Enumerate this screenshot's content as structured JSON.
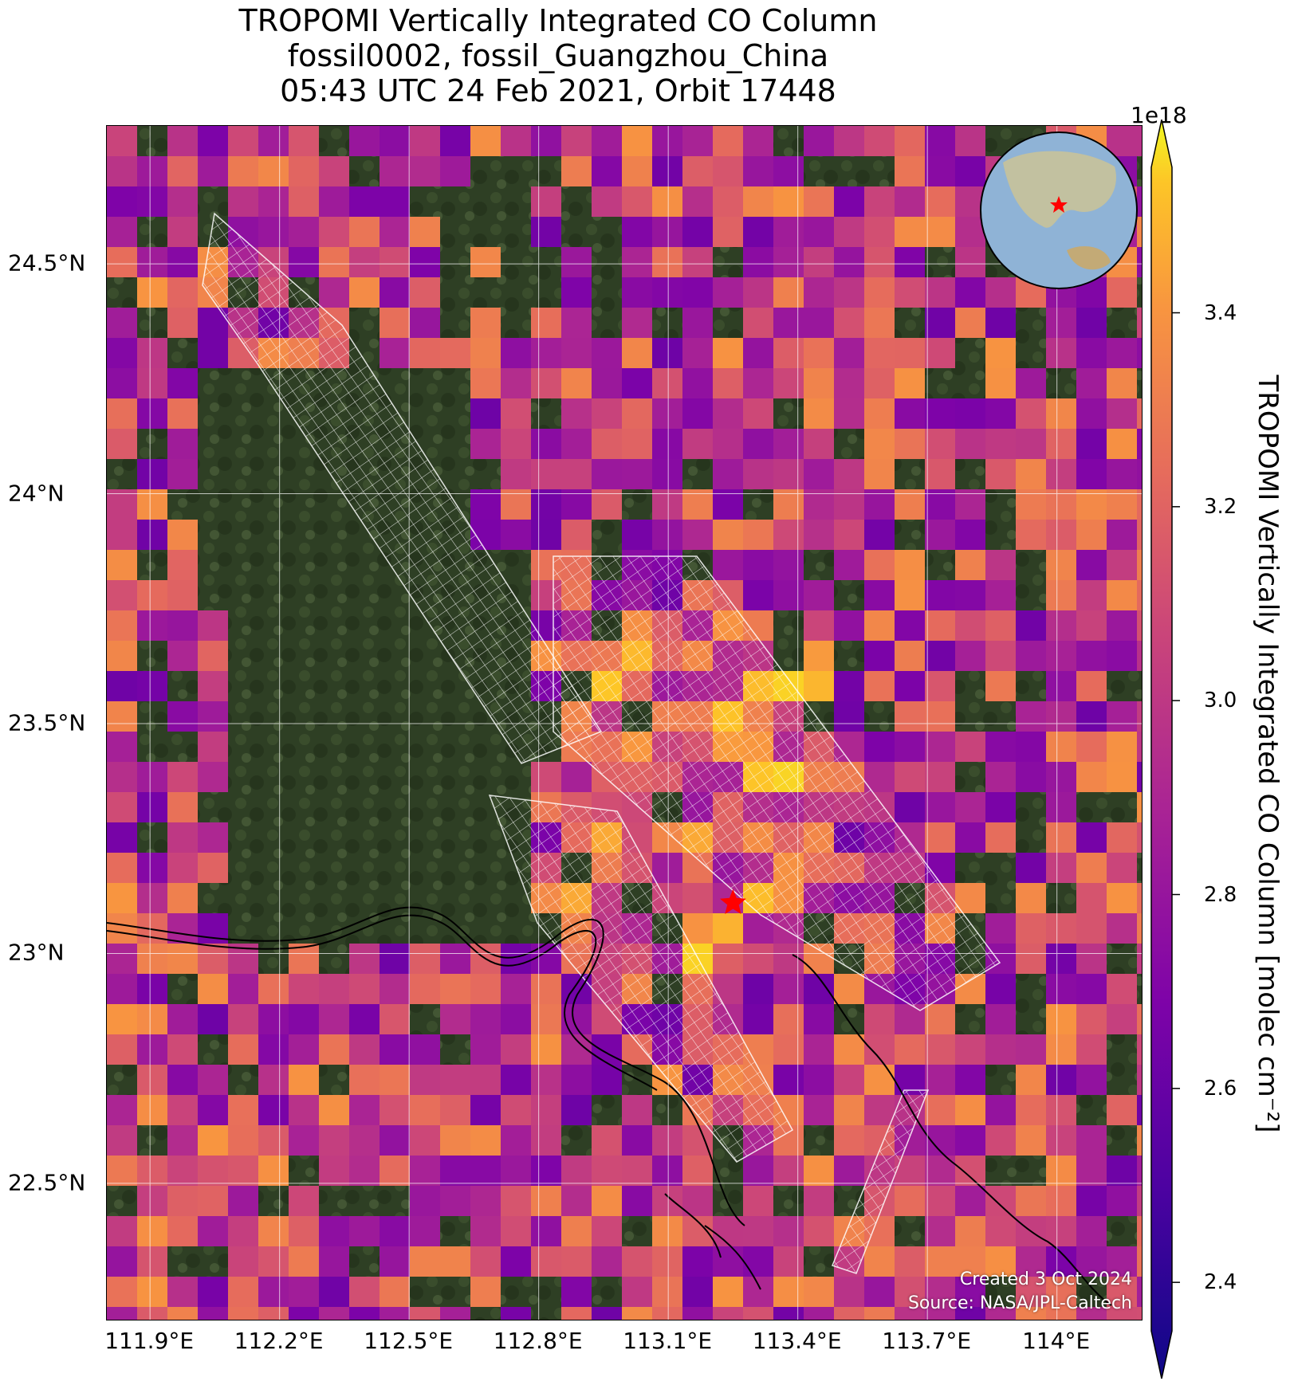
{
  "title": {
    "line1": "TROPOMI Vertically Integrated CO Column",
    "line2": "fossil0002, fossil_Guangzhou_China",
    "line3": "05:43 UTC 24 Feb 2021, Orbit 17448"
  },
  "map": {
    "lon_range": [
      111.8,
      114.2
    ],
    "lat_range": [
      22.2,
      24.8
    ],
    "lat_ticks": [
      {
        "value": 24.5,
        "label": "24.5°N"
      },
      {
        "value": 24.0,
        "label": "24°N"
      },
      {
        "value": 23.5,
        "label": "23.5°N"
      },
      {
        "value": 23.0,
        "label": "23°N"
      },
      {
        "value": 22.5,
        "label": "22.5°N"
      }
    ],
    "lon_ticks": [
      {
        "value": 111.9,
        "label": "111.9°E"
      },
      {
        "value": 112.2,
        "label": "112.2°E"
      },
      {
        "value": 112.5,
        "label": "112.5°E"
      },
      {
        "value": 112.8,
        "label": "112.8°E"
      },
      {
        "value": 113.1,
        "label": "113.1°E"
      },
      {
        "value": 113.4,
        "label": "113.4°E"
      },
      {
        "value": 113.7,
        "label": "113.7°E"
      },
      {
        "value": 114.0,
        "label": "114°E"
      }
    ],
    "target_marker": {
      "lon": 113.25,
      "lat": 23.11,
      "symbol": "red-star"
    },
    "basemap": "satellite-imagery",
    "inset": "globe-asia"
  },
  "colorbar": {
    "colormap": "plasma",
    "range": [
      2.35,
      3.55
    ],
    "exponent_label": "1e18",
    "label": "TROPOMI Vertically Integrated CO Column [molec cm⁻²]",
    "ticks": [
      {
        "value": 2.4,
        "label": "2.4"
      },
      {
        "value": 2.6,
        "label": "2.6"
      },
      {
        "value": 2.8,
        "label": "2.8"
      },
      {
        "value": 3.0,
        "label": "3.0"
      },
      {
        "value": 3.2,
        "label": "3.2"
      },
      {
        "value": 3.4,
        "label": "3.4"
      }
    ]
  },
  "credits": {
    "created": "Created 3 Oct 2024",
    "source": "Source: NASA/JPL-Caltech"
  },
  "colors": {
    "star": "#ff0000",
    "grid": "#ffffff",
    "coast": "#000000"
  }
}
